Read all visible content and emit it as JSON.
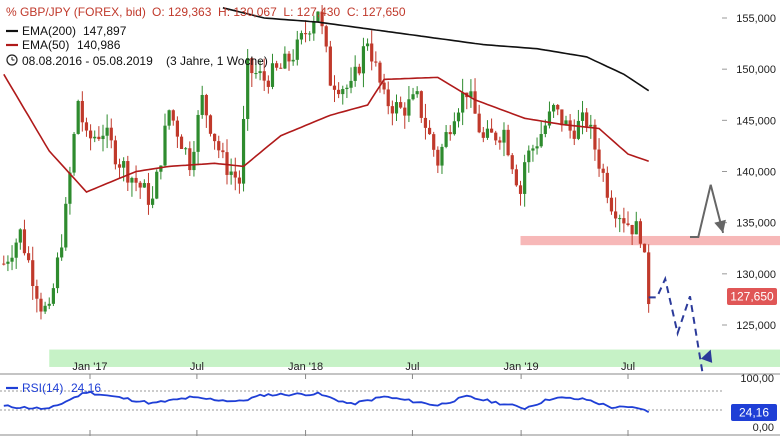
{
  "header": {
    "symbol": "GBP/JPY (FOREX, bid)",
    "ohlc": "O: 129,363  H: 130,067  L: 127,430  C: 127,650",
    "ema200_label": "EMA(200)",
    "ema200_value": "147,897",
    "ema50_label": "EMA(50)",
    "ema50_value": "140,986",
    "range": "08.08.2016 - 05.08.2019",
    "period": "(3 Jahre, 1 Woche)"
  },
  "colors": {
    "candle_up": "#2e8b2e",
    "candle_down": "#c0392b",
    "ema200": "#111111",
    "ema50": "#b01a1a",
    "price_badge": "#e05656",
    "rsi_badge": "#1f3fd6",
    "rsi_line": "#1f3fd6",
    "resistance_zone": "#f7b8b8",
    "support_zone": "#c6f2c6",
    "projection_up": "#666666",
    "projection_down": "#2b3a9a"
  },
  "price_badge": "127,650",
  "rsi": {
    "label": "RSI(14)",
    "value": "24,16",
    "levels": [
      "100,00",
      "0,00"
    ]
  },
  "chart_data": {
    "type": "candlestick",
    "title": "GBP/JPY (FOREX, bid)",
    "y_ticks": [
      "155,000",
      "150,000",
      "145,000",
      "140,000",
      "135,000",
      "130,000",
      "125,000"
    ],
    "y_tick_values": [
      155,
      150,
      145,
      140,
      135,
      130,
      125
    ],
    "x_tick_labels": [
      "Jan '17",
      "Jul",
      "Jan '18",
      "Jul",
      "Jan '19",
      "Jul"
    ],
    "x_tick_dates": [
      "2017-01-01",
      "2017-07-01",
      "2018-01-01",
      "2018-07-01",
      "2019-01-01",
      "2019-07-01"
    ],
    "start_date": "2016-08-08",
    "end_date": "2019-08-05",
    "ylim": [
      118.5,
      157.5
    ],
    "close_anchors": [
      [
        "2016-08-08",
        131
      ],
      [
        "2016-09-05",
        134
      ],
      [
        "2016-10-10",
        127
      ],
      [
        "2016-10-24",
        126
      ],
      [
        "2016-11-21",
        136
      ],
      [
        "2016-12-12",
        147
      ],
      [
        "2016-12-26",
        143
      ],
      [
        "2017-01-23",
        144
      ],
      [
        "2017-02-20",
        141
      ],
      [
        "2017-03-20",
        139
      ],
      [
        "2017-04-17",
        137
      ],
      [
        "2017-05-15",
        146
      ],
      [
        "2017-06-19",
        141
      ],
      [
        "2017-07-10",
        147
      ],
      [
        "2017-08-14",
        141
      ],
      [
        "2017-09-11",
        139
      ],
      [
        "2017-09-25",
        150
      ],
      [
        "2017-10-23",
        149
      ],
      [
        "2017-11-20",
        150
      ],
      [
        "2017-12-18",
        152
      ],
      [
        "2018-01-22",
        156
      ],
      [
        "2018-02-12",
        149
      ],
      [
        "2018-03-19",
        148
      ],
      [
        "2018-04-16",
        153
      ],
      [
        "2018-05-14",
        147
      ],
      [
        "2018-06-11",
        146
      ],
      [
        "2018-07-09",
        147
      ],
      [
        "2018-08-13",
        141
      ],
      [
        "2018-09-10",
        146
      ],
      [
        "2018-10-01",
        148
      ],
      [
        "2018-10-29",
        143
      ],
      [
        "2018-12-03",
        144
      ],
      [
        "2018-12-31",
        138
      ],
      [
        "2019-01-07",
        141
      ],
      [
        "2019-01-28",
        143
      ],
      [
        "2019-02-25",
        146
      ],
      [
        "2019-03-25",
        144
      ],
      [
        "2019-04-22",
        145
      ],
      [
        "2019-05-13",
        141
      ],
      [
        "2019-06-03",
        137
      ],
      [
        "2019-07-01",
        135
      ],
      [
        "2019-07-22",
        134
      ],
      [
        "2019-07-29",
        131
      ],
      [
        "2019-08-05",
        127.65
      ]
    ],
    "ema50_anchors": [
      [
        "2016-08-08",
        149.5
      ],
      [
        "2016-10-24",
        142
      ],
      [
        "2016-12-26",
        138
      ],
      [
        "2017-03-20",
        140
      ],
      [
        "2017-05-15",
        140.5
      ],
      [
        "2017-07-31",
        140.8
      ],
      [
        "2017-09-18",
        140.5
      ],
      [
        "2017-11-20",
        143.5
      ],
      [
        "2018-02-12",
        145.5
      ],
      [
        "2018-04-16",
        146.5
      ],
      [
        "2018-05-14",
        149
      ],
      [
        "2018-08-13",
        149.2
      ],
      [
        "2018-10-15",
        147
      ],
      [
        "2019-01-07",
        145.2
      ],
      [
        "2019-03-11",
        144.6
      ],
      [
        "2019-05-13",
        144.2
      ],
      [
        "2019-07-01",
        141.7
      ],
      [
        "2019-08-05",
        141
      ]
    ],
    "ema200_anchors": [
      [
        "2017-08-14",
        156
      ],
      [
        "2017-10-23",
        155
      ],
      [
        "2018-01-22",
        154.6
      ],
      [
        "2018-06-11",
        153.5
      ],
      [
        "2018-10-29",
        152.4
      ],
      [
        "2019-01-28",
        152
      ],
      [
        "2019-04-22",
        151.2
      ],
      [
        "2019-06-24",
        149.5
      ],
      [
        "2019-08-05",
        147.9
      ]
    ],
    "rsi_ylim": [
      0,
      100
    ],
    "rsi_anchors": [
      [
        "2016-08-08",
        38
      ],
      [
        "2016-10-24",
        32
      ],
      [
        "2016-12-26",
        68
      ],
      [
        "2017-04-17",
        44
      ],
      [
        "2017-06-19",
        56
      ],
      [
        "2017-09-11",
        48
      ],
      [
        "2017-10-23",
        62
      ],
      [
        "2018-01-22",
        64
      ],
      [
        "2018-03-19",
        42
      ],
      [
        "2018-05-14",
        58
      ],
      [
        "2018-08-13",
        40
      ],
      [
        "2018-10-01",
        58
      ],
      [
        "2019-01-07",
        34
      ],
      [
        "2019-02-25",
        56
      ],
      [
        "2019-04-22",
        52
      ],
      [
        "2019-06-03",
        36
      ],
      [
        "2019-07-22",
        34
      ],
      [
        "2019-08-05",
        24.16
      ]
    ],
    "zones": [
      {
        "name": "resistance",
        "from": 132.8,
        "to": 133.7,
        "start": "2018-12-31"
      },
      {
        "name": "support",
        "from": 120.9,
        "to": 122.6,
        "start": "2016-10-24"
      }
    ],
    "projection_up": [
      [
        "2019-10-14",
        133.6
      ],
      [
        "2019-10-28",
        133.6
      ],
      [
        "2019-11-18",
        138.7
      ],
      [
        "2019-12-09",
        134
      ]
    ],
    "projection_down": [
      [
        "2019-08-05",
        127.7
      ],
      [
        "2019-08-19",
        127.7
      ],
      [
        "2019-09-02",
        129.5
      ],
      [
        "2019-09-23",
        124.2
      ],
      [
        "2019-10-14",
        127.8
      ],
      [
        "2019-11-04",
        120.4
      ],
      [
        "2019-11-18",
        122.6
      ]
    ]
  }
}
